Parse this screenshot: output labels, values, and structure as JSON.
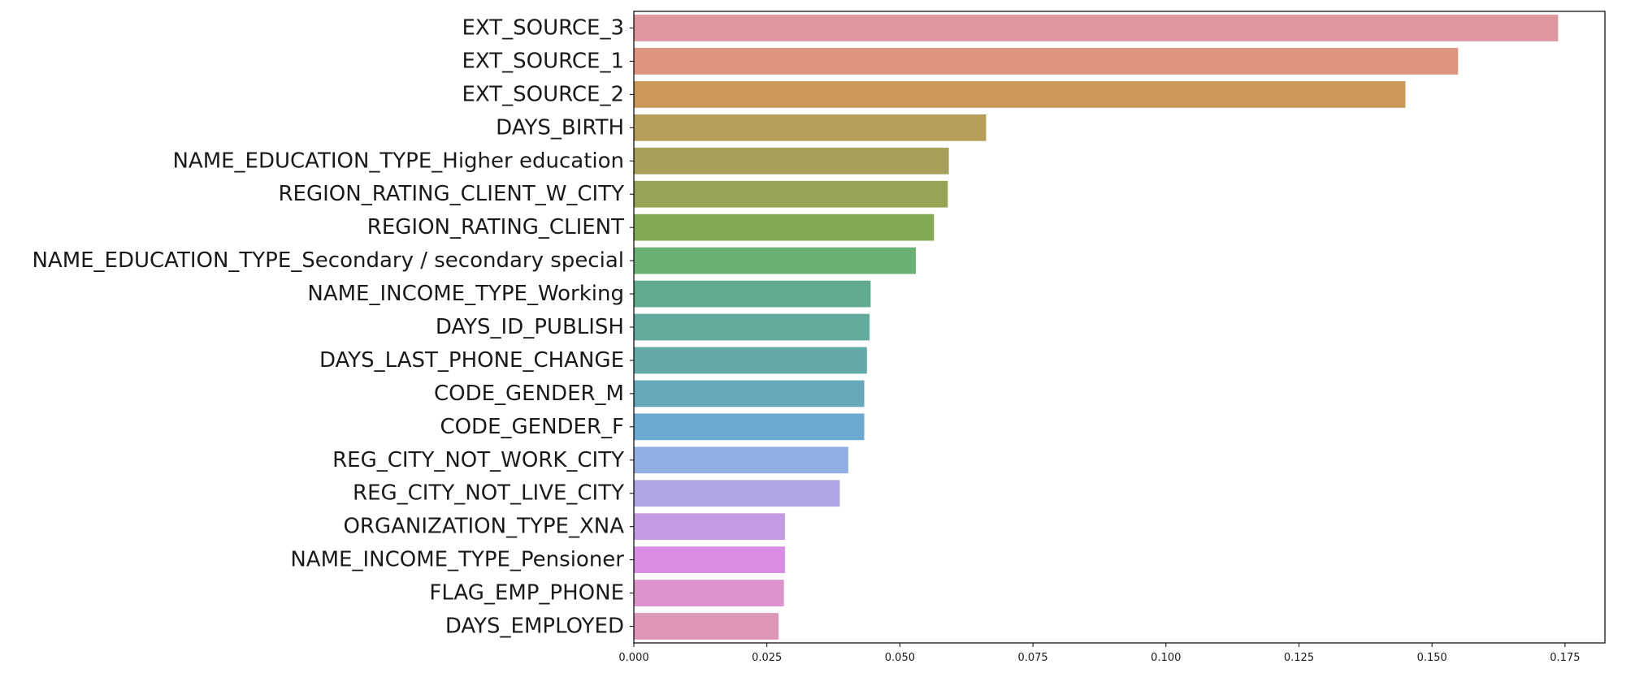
{
  "chart_data": {
    "type": "bar",
    "orientation": "horizontal",
    "categories": [
      "EXT_SOURCE_3",
      "EXT_SOURCE_1",
      "EXT_SOURCE_2",
      "DAYS_BIRTH",
      "NAME_EDUCATION_TYPE_Higher education",
      "REGION_RATING_CLIENT_W_CITY",
      "REGION_RATING_CLIENT",
      "NAME_EDUCATION_TYPE_Secondary / secondary special",
      "NAME_INCOME_TYPE_Working",
      "DAYS_ID_PUBLISH",
      "DAYS_LAST_PHONE_CHANGE",
      "CODE_GENDER_M",
      "CODE_GENDER_F",
      "REG_CITY_NOT_WORK_CITY",
      "REG_CITY_NOT_LIVE_CITY",
      "ORGANIZATION_TYPE_XNA",
      "NAME_INCOME_TYPE_Pensioner",
      "FLAG_EMP_PHONE",
      "DAYS_EMPLOYED"
    ],
    "values": [
      0.1737,
      0.1549,
      0.145,
      0.0662,
      0.0592,
      0.059,
      0.0564,
      0.053,
      0.0445,
      0.0443,
      0.0438,
      0.0433,
      0.0433,
      0.0403,
      0.0387,
      0.0284,
      0.0284,
      0.0282,
      0.0272
    ],
    "colors": [
      "#e0969e",
      "#dd9580",
      "#cb9858",
      "#b69d58",
      "#a6a05a",
      "#98a455",
      "#82aa52",
      "#69b072",
      "#60ab8c",
      "#62aa9c",
      "#64a8a8",
      "#66a8ba",
      "#6aaad0",
      "#91aee2",
      "#aea6e4",
      "#c49be2",
      "#d98ee3",
      "#dd93cc",
      "#de96b8"
    ],
    "xlim": [
      0,
      0.1825
    ],
    "xticks": [
      "0.000",
      "0.025",
      "0.050",
      "0.075",
      "0.100",
      "0.125",
      "0.150",
      "0.175"
    ],
    "title": "",
    "xlabel": "",
    "ylabel": "",
    "grid": false,
    "legend": "none"
  }
}
